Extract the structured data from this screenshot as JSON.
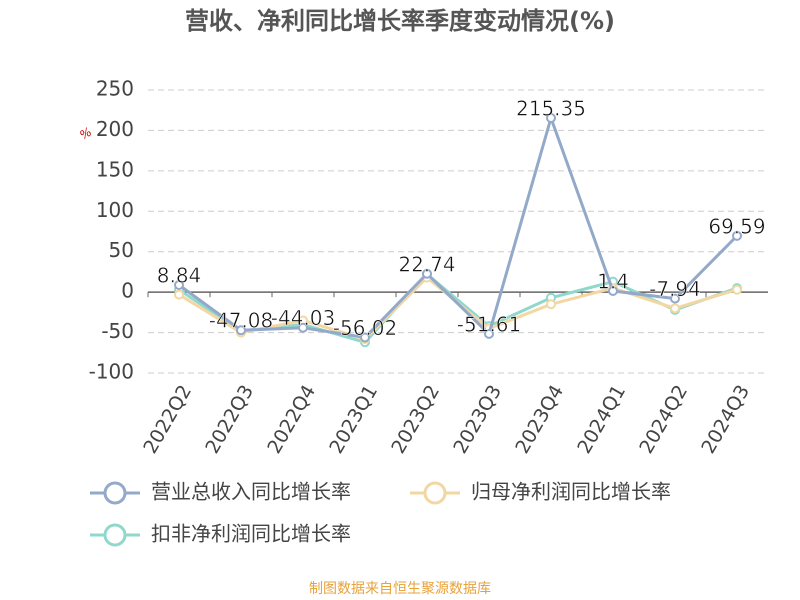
{
  "chart_data": {
    "type": "line",
    "title": "营收、净利同比增长率季度变动情况(%)",
    "y_unit": "%",
    "categories": [
      "2022Q2",
      "2022Q3",
      "2022Q4",
      "2023Q1",
      "2023Q2",
      "2023Q3",
      "2023Q4",
      "2024Q1",
      "2024Q2",
      "2024Q3"
    ],
    "series": [
      {
        "name": "营业总收入同比增长率",
        "color": "#93a9c9",
        "values": [
          8.84,
          -47.08,
          -44.03,
          -56.02,
          22.74,
          -51.61,
          215.35,
          1.4,
          -7.94,
          69.59
        ]
      },
      {
        "name": "归母净利润同比增长率",
        "color": "#f3d7a2",
        "values": [
          -3,
          -50,
          -35,
          -58,
          18,
          -45,
          -15,
          5,
          -20,
          3
        ]
      },
      {
        "name": "扣非净利润同比增长率",
        "color": "#8fd8cb",
        "values": [
          3,
          -48,
          -40,
          -62,
          22,
          -42,
          -7,
          13,
          -22,
          5
        ]
      }
    ],
    "ylim": [
      -100,
      250
    ],
    "yticks": [
      -100,
      -50,
      0,
      50,
      100,
      150,
      200,
      250
    ],
    "grid": true,
    "footer": "制图数据来自恒生聚源数据库"
  }
}
